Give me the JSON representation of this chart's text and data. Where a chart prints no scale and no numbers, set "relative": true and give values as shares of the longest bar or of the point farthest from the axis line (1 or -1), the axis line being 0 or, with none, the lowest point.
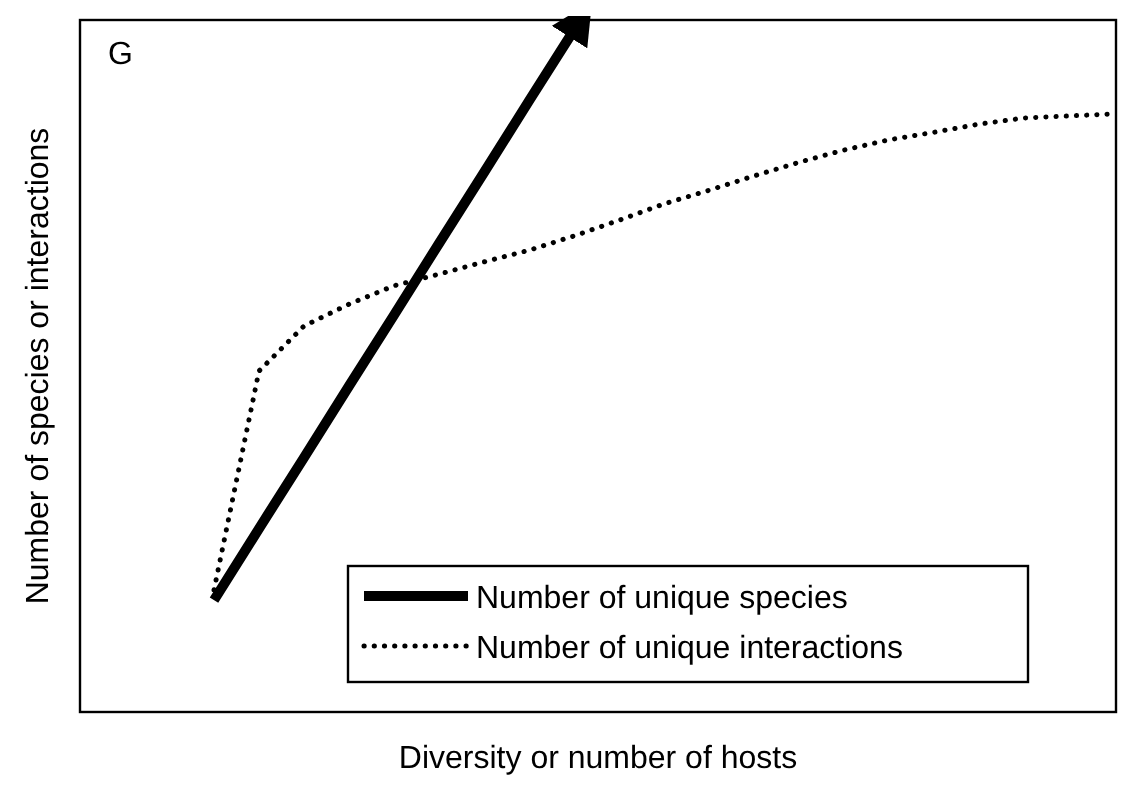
{
  "chart_data": {
    "type": "line",
    "relative": true,
    "xlabel": "Diversity or number of hosts",
    "ylabel": "Number of species or interactions",
    "annotations": [
      "G"
    ],
    "legend": "bottom right",
    "categories": [
      null,
      null,
      null,
      null,
      null,
      null,
      null,
      null,
      null,
      null,
      null,
      null,
      null,
      null,
      null,
      null,
      null,
      null,
      null,
      null,
      null
    ],
    "series": [
      {
        "name": "Number of unique species",
        "color": "#000000",
        "line_style": "solid",
        "values": [
          0.164,
          0.269,
          0.373,
          0.478,
          0.582,
          0.687,
          0.791,
          0.896,
          1,
          null,
          null,
          null,
          null,
          null,
          null,
          null,
          null,
          null,
          null,
          null,
          null
        ]
      },
      {
        "name": "Number of unique interactions",
        "color": "#000000",
        "line_style": "dotted",
        "values": [
          0.179,
          0.5,
          0.566,
          0.598,
          0.625,
          0.642,
          0.66,
          0.677,
          0.698,
          0.721,
          0.745,
          0.765,
          0.786,
          0.806,
          0.824,
          0.839,
          0.85,
          0.862,
          0.871,
          0.874,
          0.877
        ]
      }
    ]
  }
}
